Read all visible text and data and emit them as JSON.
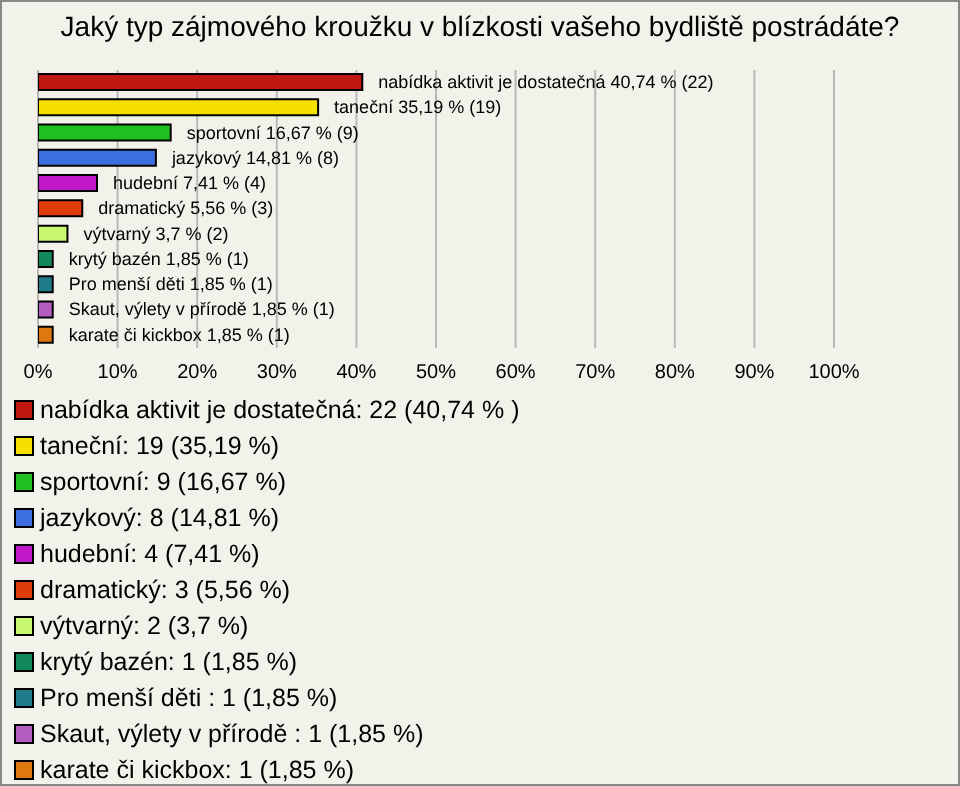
{
  "chart_data": {
    "type": "bar",
    "orientation": "horizontal",
    "stacked": true,
    "title": "Jaký typ zájmového kroužku v blízkosti vašeho bydliště postrádáte?",
    "categories": [
      null,
      null,
      null,
      null,
      null,
      null,
      null,
      null,
      null,
      null,
      null
    ],
    "series": [
      {
        "name": "nabídka aktivit je dostatečná: 22 (40,74 % )",
        "color": "#c0180f",
        "values": [
          40.74,
          null,
          null,
          null,
          null,
          null,
          null,
          null,
          null,
          null,
          null
        ],
        "value_labels": [
          "nabídka aktivit je dostatečná 40,74 % (22)",
          null,
          null,
          null,
          null,
          null,
          null,
          null,
          null,
          null,
          null
        ]
      },
      {
        "name": "taneční: 19 (35,19 %)",
        "color": "#f5e000",
        "values": [
          null,
          35.19,
          null,
          null,
          null,
          null,
          null,
          null,
          null,
          null,
          null
        ],
        "value_labels": [
          null,
          "taneční 35,19 % (19)",
          null,
          null,
          null,
          null,
          null,
          null,
          null,
          null,
          null
        ]
      },
      {
        "name": "sportovní: 9 (16,67 %)",
        "color": "#1fbf1f",
        "values": [
          null,
          null,
          16.67,
          null,
          null,
          null,
          null,
          null,
          null,
          null,
          null
        ],
        "value_labels": [
          null,
          null,
          "sportovní 16,67 % (9)",
          null,
          null,
          null,
          null,
          null,
          null,
          null,
          null
        ]
      },
      {
        "name": "jazykový: 8 (14,81 %)",
        "color": "#3d6ee0",
        "values": [
          null,
          null,
          null,
          14.81,
          null,
          null,
          null,
          null,
          null,
          null,
          null
        ],
        "value_labels": [
          null,
          null,
          null,
          "jazykový 14,81 % (8)",
          null,
          null,
          null,
          null,
          null,
          null,
          null
        ]
      },
      {
        "name": "hudební: 4 (7,41 %)",
        "color": "#c018c8",
        "values": [
          null,
          null,
          null,
          null,
          7.41,
          null,
          null,
          null,
          null,
          null,
          null
        ],
        "value_labels": [
          null,
          null,
          null,
          null,
          "hudební 7,41 % (4)",
          null,
          null,
          null,
          null,
          null,
          null
        ]
      },
      {
        "name": "dramatický: 3 (5,56 %)",
        "color": "#e03c0a",
        "values": [
          null,
          null,
          null,
          null,
          null,
          5.56,
          null,
          null,
          null,
          null,
          null
        ],
        "value_labels": [
          null,
          null,
          null,
          null,
          null,
          "dramatický 5,56 % (3)",
          null,
          null,
          null,
          null,
          null
        ]
      },
      {
        "name": "výtvarný: 2 (3,7 %)",
        "color": "#c8f870",
        "values": [
          null,
          null,
          null,
          null,
          null,
          null,
          3.7,
          null,
          null,
          null,
          null
        ],
        "value_labels": [
          null,
          null,
          null,
          null,
          null,
          null,
          "výtvarný 3,7 % (2)",
          null,
          null,
          null,
          null
        ]
      },
      {
        "name": "krytý bazén: 1 (1,85 %)",
        "color": "#13885a",
        "values": [
          null,
          null,
          null,
          null,
          null,
          null,
          null,
          1.85,
          null,
          null,
          null
        ],
        "value_labels": [
          null,
          null,
          null,
          null,
          null,
          null,
          null,
          "krytý bazén 1,85 % (1)",
          null,
          null,
          null
        ]
      },
      {
        "name": "Pro menší děti : 1 (1,85 %)",
        "color": "#1f7a8a",
        "values": [
          null,
          null,
          null,
          null,
          null,
          null,
          null,
          null,
          1.85,
          null,
          null
        ],
        "value_labels": [
          null,
          null,
          null,
          null,
          null,
          null,
          null,
          null,
          "Pro menší děti  1,85 % (1)",
          null,
          null
        ]
      },
      {
        "name": "Skaut, výlety v přírodě : 1 (1,85 %)",
        "color": "#b45cc0",
        "values": [
          null,
          null,
          null,
          null,
          null,
          null,
          null,
          null,
          null,
          1.85,
          null
        ],
        "value_labels": [
          null,
          null,
          null,
          null,
          null,
          null,
          null,
          null,
          null,
          "Skaut, výlety v přírodě  1,85 % (1)",
          null
        ]
      },
      {
        "name": "karate či kickbox: 1 (1,85 %)",
        "color": "#e07810",
        "values": [
          null,
          null,
          null,
          null,
          null,
          null,
          null,
          null,
          null,
          null,
          1.85
        ],
        "value_labels": [
          null,
          null,
          null,
          null,
          null,
          null,
          null,
          null,
          null,
          null,
          "karate či kickbox 1,85 % (1)"
        ]
      }
    ],
    "xlim": [
      0,
      100
    ],
    "xticks": [
      {
        "value": 0,
        "label": "0%"
      },
      {
        "value": 10,
        "label": "10%"
      },
      {
        "value": 20,
        "label": "20%"
      },
      {
        "value": 30,
        "label": "30%"
      },
      {
        "value": 40,
        "label": "40%"
      },
      {
        "value": 50,
        "label": "50%"
      },
      {
        "value": 60,
        "label": "60%"
      },
      {
        "value": 70,
        "label": "70%"
      },
      {
        "value": 80,
        "label": "80%"
      },
      {
        "value": 90,
        "label": "90%"
      },
      {
        "value": 100,
        "label": "100%"
      }
    ],
    "grid": "x",
    "legend": "bottom"
  }
}
